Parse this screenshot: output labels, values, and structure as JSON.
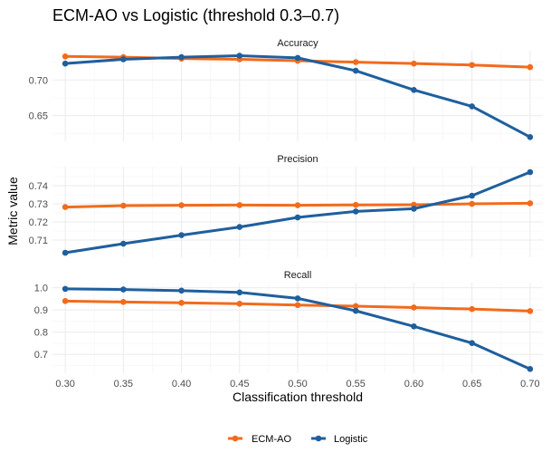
{
  "chart_data": {
    "type": "line",
    "title": "ECM-AO vs Logistic (threshold 0.3–0.7)",
    "xlabel": "Classification threshold",
    "ylabel": "Metric value",
    "x": [
      0.3,
      0.35,
      0.4,
      0.45,
      0.5,
      0.55,
      0.6,
      0.65,
      0.7
    ],
    "x_tick_labels": [
      "0.30",
      "0.35",
      "0.40",
      "0.45",
      "0.50",
      "0.55",
      "0.60",
      "0.65",
      "0.70"
    ],
    "xlim": [
      0.289,
      0.711
    ],
    "legend_position": "bottom",
    "legend": [
      {
        "name": "ECM-AO",
        "color": "#f26b1d"
      },
      {
        "name": "Logistic",
        "color": "#1f5f9e"
      }
    ],
    "panels": [
      {
        "label": "Accuracy",
        "ylim": [
          0.614,
          0.741
        ],
        "yticks": [
          0.65,
          0.7
        ],
        "ytick_labels": [
          "0.65",
          "0.70"
        ],
        "series": [
          {
            "name": "ECM-AO",
            "values": [
              0.733,
              0.732,
              0.73,
              0.729,
              0.727,
              0.725,
              0.723,
              0.721,
              0.718
            ]
          },
          {
            "name": "Logistic",
            "values": [
              0.723,
              0.729,
              0.732,
              0.734,
              0.731,
              0.713,
              0.686,
              0.663,
              0.62
            ]
          }
        ]
      },
      {
        "label": "Precision",
        "ylim": [
          0.7005,
          0.7505
        ],
        "yticks": [
          0.71,
          0.72,
          0.73,
          0.74
        ],
        "ytick_labels": [
          "0.71",
          "0.72",
          "0.73",
          "0.74"
        ],
        "series": [
          {
            "name": "ECM-AO",
            "values": [
              0.7282,
              0.729,
              0.7292,
              0.7293,
              0.7292,
              0.7294,
              0.7295,
              0.73,
              0.7303
            ]
          },
          {
            "name": "Logistic",
            "values": [
              0.703,
              0.708,
              0.7127,
              0.7172,
              0.7225,
              0.7258,
              0.7273,
              0.7345,
              0.7475
            ]
          }
        ]
      },
      {
        "label": "Recall",
        "ylim": [
          0.615,
          1.023
        ],
        "yticks": [
          0.7,
          0.8,
          0.9,
          1.0
        ],
        "ytick_labels": [
          "0.7",
          "0.8",
          "0.9",
          "1.0"
        ],
        "series": [
          {
            "name": "ECM-AO",
            "values": [
              0.94,
              0.936,
              0.932,
              0.928,
              0.922,
              0.917,
              0.911,
              0.904,
              0.895
            ]
          },
          {
            "name": "Logistic",
            "values": [
              0.995,
              0.992,
              0.987,
              0.979,
              0.952,
              0.896,
              0.826,
              0.751,
              0.634
            ]
          }
        ]
      }
    ]
  }
}
